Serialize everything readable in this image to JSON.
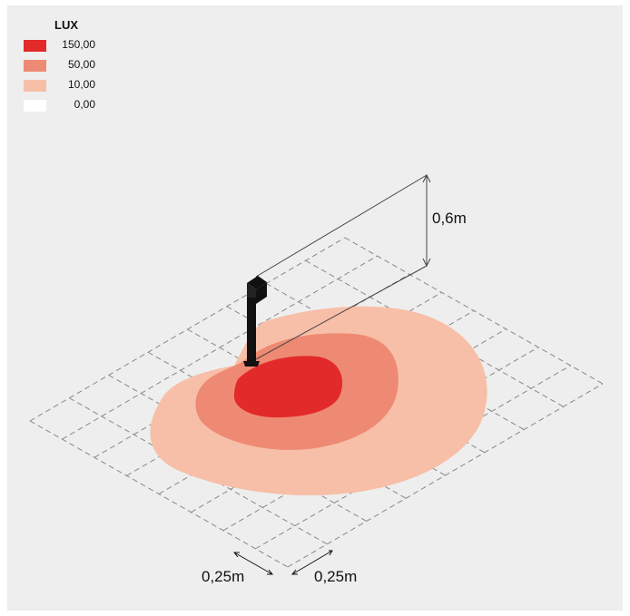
{
  "legend": {
    "title": "LUX",
    "items": [
      {
        "label": "150,00",
        "color": "#e32a2a"
      },
      {
        "label": "50,00",
        "color": "#ee8a73"
      },
      {
        "label": "10,00",
        "color": "#f7bfa8"
      },
      {
        "label": "0,00",
        "color": "#ffffff"
      }
    ]
  },
  "dimensions": {
    "height": "0,6m",
    "grid_left": "0,25m",
    "grid_right": "0,25m"
  },
  "colors": {
    "background": "#eeeeee",
    "grid": "#888888",
    "lamp": "#111111"
  }
}
